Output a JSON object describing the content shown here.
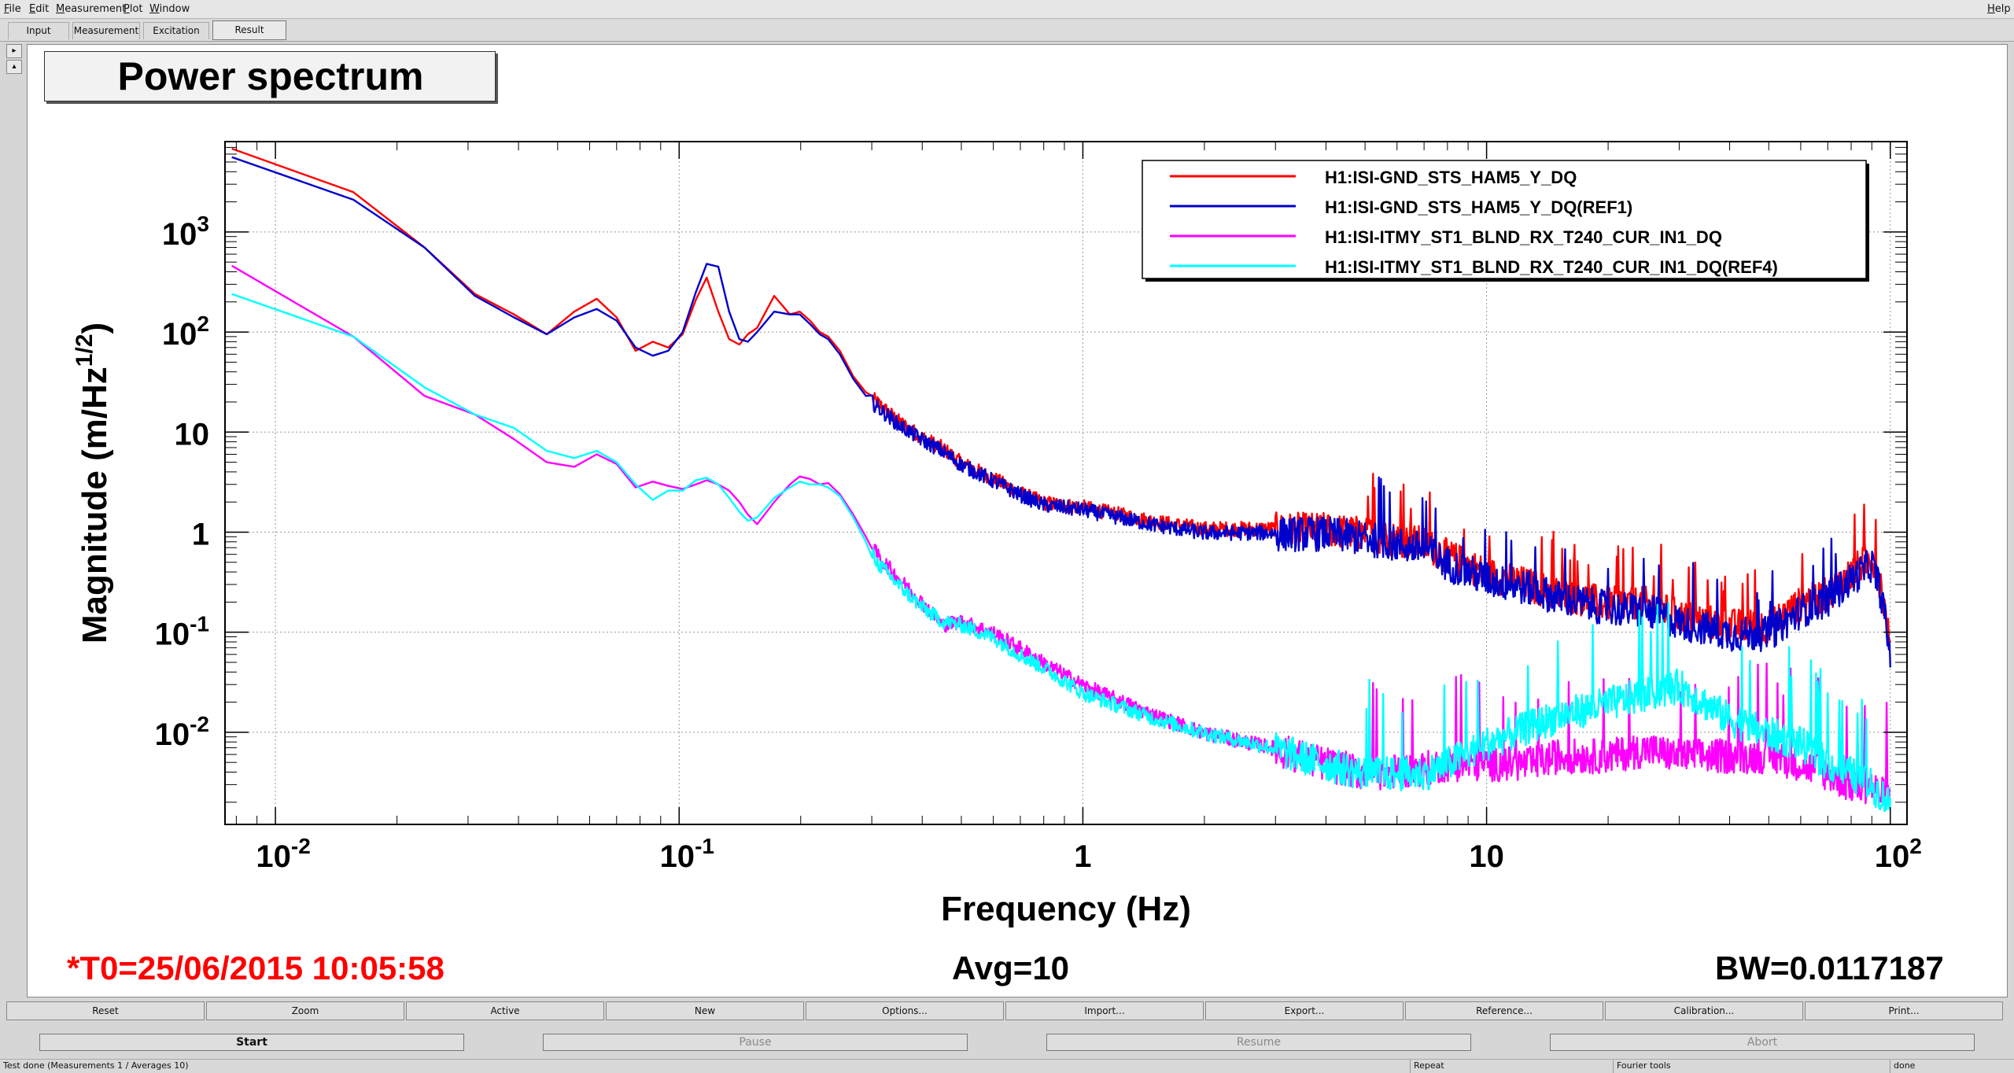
{
  "menubar": {
    "items": [
      "File",
      "Edit",
      "Measurement",
      "Plot",
      "Window"
    ],
    "help": "Help"
  },
  "tabs": [
    "Input",
    "Measurement",
    "Excitation",
    "Result"
  ],
  "active_tab": "Result",
  "plot": {
    "title": "Power spectrum",
    "t0": "*T0=25/06/2015 10:05:58",
    "avg": "Avg=10",
    "bw": "BW=0.0117187"
  },
  "toolbar": [
    "Reset",
    "Zoom",
    "Active",
    "New",
    "Options...",
    "Import...",
    "Export...",
    "Reference...",
    "Calibration...",
    "Print..."
  ],
  "controls": {
    "start": "Start",
    "pause": "Pause",
    "resume": "Resume",
    "abort": "Abort"
  },
  "statusbar": {
    "message": "Test done (Measurements 1 / Averages 10)",
    "repeat": "Repeat",
    "tools": "Fourier tools",
    "state": "done"
  },
  "chart_data": {
    "type": "line",
    "title": "Power spectrum",
    "xlabel": "Frequency (Hz)",
    "ylabel": "Magnitude (m/Hz1/2)",
    "x_scale": "log",
    "y_scale": "log",
    "xlim": [
      0.0075,
      110
    ],
    "ylim": [
      0.0012,
      8000
    ],
    "x_ticks": [
      "10-2",
      "10-1",
      "1",
      "10",
      "102"
    ],
    "y_ticks": [
      "10-2",
      "10-1",
      "1",
      "10",
      "102",
      "103"
    ],
    "grid": true,
    "legend_position": "top-right",
    "series": [
      {
        "name": "H1:ISI-GND_STS_HAM5_Y_DQ",
        "color": "#ff0000",
        "x": [
          0.0078,
          0.0156,
          0.0234,
          0.0312,
          0.039,
          0.047,
          0.055,
          0.0625,
          0.07,
          0.078,
          0.086,
          0.094,
          0.102,
          0.11,
          0.117,
          0.125,
          0.133,
          0.141,
          0.148,
          0.156,
          0.172,
          0.188,
          0.199,
          0.211,
          0.223,
          0.234,
          0.25,
          0.27,
          0.29,
          0.31,
          0.35,
          0.4,
          0.45,
          0.5,
          0.6,
          0.7,
          0.8,
          1.0,
          1.5,
          2.0,
          3.0,
          4.0,
          5.0,
          7.0,
          8.0,
          10.0,
          13.0,
          15.0,
          20.0,
          25.0,
          30.0,
          40.0,
          50.0,
          60.0,
          70.0,
          80.0,
          90.0,
          95.0,
          100.0
        ],
        "y": [
          6800,
          2500,
          700,
          240,
          150,
          95,
          160,
          215,
          140,
          65,
          80,
          70,
          95,
          210,
          350,
          160,
          85,
          75,
          95,
          110,
          230,
          150,
          160,
          130,
          100,
          90,
          65,
          36,
          25,
          20,
          13,
          9,
          7,
          5,
          3.5,
          2.5,
          2.0,
          1.8,
          1.3,
          1.1,
          1.1,
          1.1,
          1.0,
          0.8,
          0.6,
          0.4,
          0.3,
          0.25,
          0.2,
          0.2,
          0.15,
          0.12,
          0.12,
          0.2,
          0.25,
          0.4,
          0.6,
          0.3,
          0.07
        ]
      },
      {
        "name": "H1:ISI-GND_STS_HAM5_Y_DQ(REF1)",
        "color": "#0000cc",
        "x": [
          0.0078,
          0.0156,
          0.0234,
          0.0312,
          0.039,
          0.047,
          0.055,
          0.0625,
          0.07,
          0.078,
          0.086,
          0.094,
          0.102,
          0.11,
          0.117,
          0.125,
          0.133,
          0.141,
          0.148,
          0.156,
          0.172,
          0.188,
          0.199,
          0.211,
          0.223,
          0.234,
          0.25,
          0.27,
          0.29,
          0.31,
          0.35,
          0.4,
          0.45,
          0.5,
          0.6,
          0.7,
          0.8,
          1.0,
          1.5,
          2.0,
          3.0,
          4.0,
          5.0,
          7.0,
          8.0,
          10.0,
          13.0,
          15.0,
          20.0,
          25.0,
          30.0,
          40.0,
          50.0,
          60.0,
          70.0,
          80.0,
          90.0,
          95.0,
          100.0
        ],
        "y": [
          5600,
          2100,
          700,
          230,
          140,
          95,
          140,
          170,
          130,
          70,
          58,
          65,
          100,
          250,
          480,
          450,
          160,
          85,
          80,
          100,
          160,
          150,
          150,
          120,
          95,
          85,
          60,
          34,
          23,
          18,
          12,
          8.5,
          6.5,
          4.8,
          3.3,
          2.4,
          1.9,
          1.7,
          1.2,
          1.0,
          1.0,
          1.0,
          0.9,
          0.7,
          0.5,
          0.35,
          0.28,
          0.23,
          0.18,
          0.17,
          0.13,
          0.1,
          0.1,
          0.17,
          0.22,
          0.35,
          0.5,
          0.25,
          0.06
        ]
      },
      {
        "name": "H1:ISI-ITMY_ST1_BLND_RX_T240_CUR_IN1_DQ",
        "color": "#ff00ff",
        "x": [
          0.0078,
          0.0156,
          0.0234,
          0.0312,
          0.039,
          0.047,
          0.055,
          0.0625,
          0.07,
          0.078,
          0.086,
          0.094,
          0.102,
          0.11,
          0.117,
          0.125,
          0.133,
          0.141,
          0.148,
          0.156,
          0.172,
          0.188,
          0.199,
          0.211,
          0.223,
          0.234,
          0.25,
          0.27,
          0.29,
          0.31,
          0.35,
          0.4,
          0.45,
          0.5,
          0.6,
          0.7,
          0.8,
          1.0,
          1.5,
          2.0,
          3.0,
          4.0,
          5.0,
          7.0,
          8.0,
          10.0,
          13.0,
          15.0,
          20.0,
          25.0,
          30.0,
          40.0,
          50.0,
          60.0,
          70.0,
          80.0,
          90.0,
          95.0,
          100.0
        ],
        "y": [
          460,
          90,
          23,
          15,
          8.5,
          5.0,
          4.5,
          6.0,
          4.8,
          2.8,
          3.2,
          2.9,
          2.7,
          3.0,
          3.3,
          3.0,
          2.6,
          2.0,
          1.5,
          1.2,
          2.0,
          3.0,
          3.6,
          3.4,
          3.0,
          3.1,
          2.4,
          1.5,
          0.9,
          0.6,
          0.35,
          0.2,
          0.12,
          0.13,
          0.1,
          0.07,
          0.05,
          0.03,
          0.015,
          0.01,
          0.007,
          0.005,
          0.004,
          0.0045,
          0.005,
          0.005,
          0.005,
          0.006,
          0.006,
          0.007,
          0.006,
          0.006,
          0.006,
          0.005,
          0.004,
          0.003,
          0.003,
          0.0025,
          0.0025
        ]
      },
      {
        "name": "H1:ISI-ITMY_ST1_BLND_RX_T240_CUR_IN1_DQ(REF4)",
        "color": "#00ffff",
        "x": [
          0.0078,
          0.0156,
          0.0234,
          0.0312,
          0.039,
          0.047,
          0.055,
          0.0625,
          0.07,
          0.078,
          0.086,
          0.094,
          0.102,
          0.11,
          0.117,
          0.125,
          0.133,
          0.141,
          0.148,
          0.156,
          0.172,
          0.188,
          0.199,
          0.211,
          0.223,
          0.234,
          0.25,
          0.27,
          0.29,
          0.31,
          0.35,
          0.4,
          0.45,
          0.5,
          0.6,
          0.7,
          0.8,
          1.0,
          1.5,
          2.0,
          3.0,
          4.0,
          5.0,
          7.0,
          8.0,
          10.0,
          13.0,
          15.0,
          20.0,
          25.0,
          30.0,
          40.0,
          50.0,
          60.0,
          70.0,
          80.0,
          90.0,
          95.0,
          100.0
        ],
        "y": [
          240,
          90,
          28,
          15,
          11,
          6.5,
          5.5,
          6.5,
          5.0,
          3.0,
          2.1,
          2.6,
          2.6,
          3.3,
          3.5,
          3.0,
          2.2,
          1.6,
          1.3,
          1.4,
          2.2,
          2.8,
          3.2,
          3.0,
          3.0,
          2.8,
          2.3,
          1.4,
          0.8,
          0.5,
          0.3,
          0.18,
          0.13,
          0.12,
          0.09,
          0.06,
          0.045,
          0.025,
          0.014,
          0.01,
          0.007,
          0.005,
          0.004,
          0.004,
          0.005,
          0.008,
          0.012,
          0.015,
          0.02,
          0.025,
          0.03,
          0.014,
          0.01,
          0.008,
          0.005,
          0.004,
          0.003,
          0.0025,
          0.002
        ]
      }
    ]
  }
}
